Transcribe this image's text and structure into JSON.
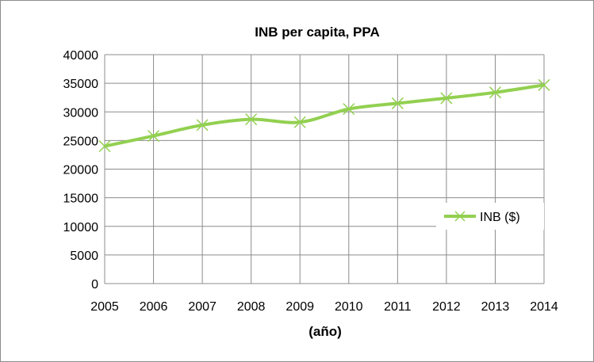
{
  "chart_data": {
    "type": "line",
    "title": "INB per capita, PPA",
    "xlabel": "(año)",
    "ylabel": "",
    "categories": [
      "2005",
      "2006",
      "2007",
      "2008",
      "2009",
      "2010",
      "2011",
      "2012",
      "2013",
      "2014"
    ],
    "ylim": [
      0,
      40000
    ],
    "yticks": [
      "0",
      "5000",
      "10000",
      "15000",
      "20000",
      "25000",
      "30000",
      "35000",
      "40000"
    ],
    "grid": true,
    "legend_position": "right",
    "series": [
      {
        "name": "INB ($)",
        "color": "#92d050",
        "marker": "x",
        "values": [
          24000,
          25800,
          27700,
          28700,
          28200,
          30500,
          31500,
          32400,
          33400,
          34700
        ]
      }
    ]
  }
}
